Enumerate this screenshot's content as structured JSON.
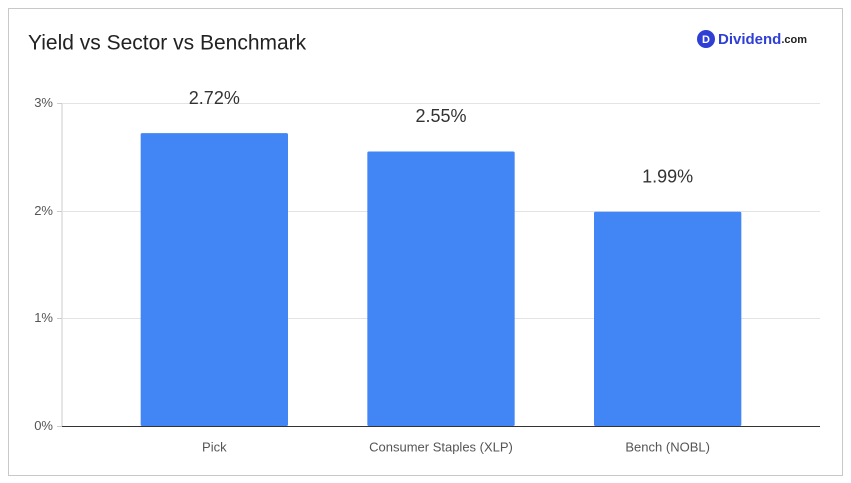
{
  "brand": {
    "icon": "D",
    "name": "Dividend",
    "suffix": ".com"
  },
  "chart_data": {
    "type": "bar",
    "title": "Yield vs Sector vs Benchmark",
    "categories": [
      "Pick",
      "Consumer Staples (XLP)",
      "Bench (NOBL)"
    ],
    "values": [
      2.72,
      2.55,
      1.99
    ],
    "value_labels": [
      "2.72%",
      "2.55%",
      "1.99%"
    ],
    "color": "#4285f4",
    "ylim": [
      0,
      3
    ],
    "yticks": [
      {
        "value": 0,
        "label": "0%"
      },
      {
        "value": 1,
        "label": "1%"
      },
      {
        "value": 2,
        "label": "2%"
      },
      {
        "value": 3,
        "label": "3%"
      }
    ],
    "grid": true
  }
}
